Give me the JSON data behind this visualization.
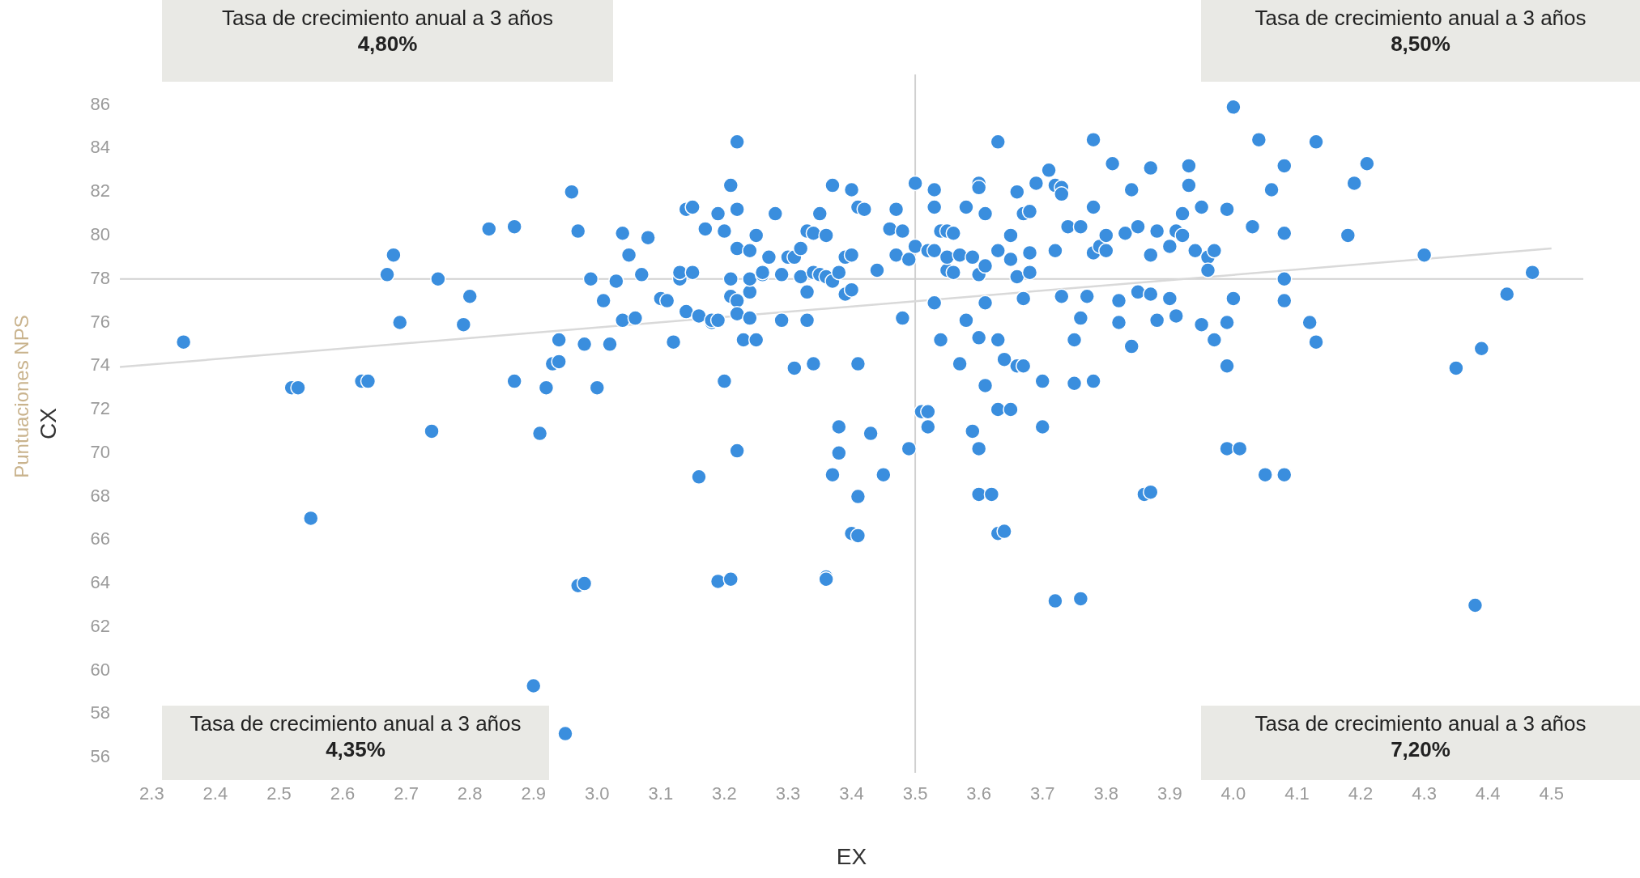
{
  "chart_data": {
    "type": "scatter",
    "xlabel": "EX",
    "ylabel": "CX",
    "annotations": [
      "Tasa de crecimiento anual a 3 años\n4,80%",
      "Tasa de crecimiento anual a 3 años\n8,50%",
      "Tasa de crecimiento anual a 3 años\n4,35%",
      "Tasa de crecimiento anual a 3 años\n7,20%",
      "Puntuaciones NPS"
    ],
    "xlim": [
      2.25,
      4.55
    ],
    "ylim": [
      55.3,
      87.4
    ],
    "xticks": [
      2.3,
      2.4,
      2.5,
      2.6,
      2.7,
      2.8,
      2.9,
      {
        "value": 3,
        "label": "3.0"
      },
      3.1,
      3.2,
      3.3,
      3.4,
      3.5,
      3.6,
      3.7,
      3.8,
      3.9,
      {
        "value": 4,
        "label": "4.0"
      },
      4.1,
      4.2,
      4.3,
      4.4,
      4.5
    ],
    "yticks": [
      56,
      58,
      60,
      62,
      64,
      66,
      68,
      70,
      72,
      74,
      76,
      78,
      80,
      82,
      84,
      86
    ],
    "ref_lines": [
      {
        "axis": "y",
        "value": 78,
        "color": "#d0d0d0"
      },
      {
        "axis": "x",
        "value": 3.5,
        "color": "#d0d0d0"
      }
    ],
    "series": [
      {
        "color": "#3a8ede",
        "marker": "circle",
        "x": [
          2.35,
          2.52,
          2.53,
          2.55,
          2.63,
          2.64,
          2.67,
          2.68,
          2.69,
          2.74,
          2.75,
          2.79,
          2.8,
          2.83,
          2.87,
          2.87,
          2.9,
          2.91,
          2.92,
          2.93,
          2.94,
          2.94,
          2.95,
          2.96,
          2.97,
          2.97,
          2.98,
          2.98,
          2.99,
          3.0,
          3.01,
          3.02,
          3.03,
          3.04,
          3.04,
          3.05,
          3.06,
          3.07,
          3.08,
          3.1,
          3.11,
          3.12,
          3.13,
          3.13,
          3.14,
          3.14,
          3.15,
          3.15,
          3.16,
          3.16,
          3.17,
          3.18,
          3.18,
          3.19,
          3.19,
          3.19,
          3.2,
          3.2,
          3.21,
          3.21,
          3.21,
          3.21,
          3.22,
          3.22,
          3.22,
          3.22,
          3.22,
          3.22,
          3.23,
          3.24,
          3.24,
          3.24,
          3.24,
          3.25,
          3.25,
          3.26,
          3.26,
          3.27,
          3.28,
          3.29,
          3.29,
          3.3,
          3.31,
          3.31,
          3.32,
          3.32,
          3.33,
          3.33,
          3.33,
          3.34,
          3.34,
          3.34,
          3.35,
          3.35,
          3.36,
          3.36,
          3.36,
          3.36,
          3.37,
          3.37,
          3.37,
          3.38,
          3.38,
          3.38,
          3.39,
          3.39,
          3.4,
          3.4,
          3.4,
          3.4,
          3.41,
          3.41,
          3.41,
          3.41,
          3.42,
          3.43,
          3.44,
          3.45,
          3.46,
          3.47,
          3.47,
          3.48,
          3.48,
          3.49,
          3.49,
          3.5,
          3.5,
          3.51,
          3.52,
          3.52,
          3.52,
          3.53,
          3.53,
          3.53,
          3.53,
          3.54,
          3.54,
          3.55,
          3.55,
          3.55,
          3.56,
          3.56,
          3.57,
          3.57,
          3.58,
          3.58,
          3.59,
          3.59,
          3.6,
          3.6,
          3.6,
          3.6,
          3.6,
          3.6,
          3.61,
          3.61,
          3.61,
          3.61,
          3.62,
          3.63,
          3.63,
          3.63,
          3.63,
          3.63,
          3.64,
          3.64,
          3.65,
          3.65,
          3.65,
          3.66,
          3.66,
          3.66,
          3.67,
          3.67,
          3.67,
          3.68,
          3.68,
          3.68,
          3.69,
          3.7,
          3.7,
          3.71,
          3.72,
          3.72,
          3.72,
          3.73,
          3.73,
          3.73,
          3.74,
          3.75,
          3.75,
          3.76,
          3.76,
          3.76,
          3.77,
          3.78,
          3.78,
          3.78,
          3.78,
          3.79,
          3.8,
          3.8,
          3.81,
          3.82,
          3.82,
          3.83,
          3.84,
          3.84,
          3.85,
          3.85,
          3.86,
          3.87,
          3.87,
          3.87,
          3.87,
          3.88,
          3.88,
          3.9,
          3.9,
          3.91,
          3.91,
          3.92,
          3.92,
          3.93,
          3.93,
          3.94,
          3.95,
          3.95,
          3.96,
          3.96,
          3.97,
          3.97,
          3.99,
          3.99,
          3.99,
          3.99,
          4.0,
          4.0,
          4.01,
          4.03,
          4.04,
          4.05,
          4.06,
          4.08,
          4.08,
          4.08,
          4.08,
          4.08,
          4.12,
          4.13,
          4.13,
          4.18,
          4.19,
          4.21,
          4.3,
          4.35,
          4.38,
          4.39,
          4.43,
          4.47
        ],
        "values": [
          75.1,
          73.0,
          73.0,
          67.0,
          73.3,
          73.3,
          78.2,
          79.1,
          76.0,
          71.0,
          78.0,
          75.9,
          77.2,
          80.3,
          80.4,
          73.3,
          59.3,
          70.9,
          73.0,
          74.1,
          75.2,
          74.2,
          57.1,
          82.0,
          80.2,
          63.9,
          64.0,
          75.0,
          78.0,
          73.0,
          77.0,
          75.0,
          77.9,
          80.1,
          76.1,
          79.1,
          76.2,
          78.2,
          79.9,
          77.1,
          77.0,
          75.1,
          78.0,
          78.3,
          81.2,
          76.5,
          81.3,
          78.3,
          76.3,
          68.9,
          80.3,
          76.0,
          76.1,
          81.0,
          76.1,
          64.1,
          80.2,
          73.3,
          82.3,
          78.0,
          77.2,
          64.2,
          84.3,
          81.2,
          79.4,
          77.0,
          76.4,
          70.1,
          75.2,
          79.3,
          77.4,
          76.2,
          78.0,
          80.0,
          75.2,
          78.2,
          78.3,
          79.0,
          81.0,
          78.2,
          76.1,
          79.0,
          79.0,
          73.9,
          79.4,
          78.1,
          80.2,
          77.4,
          76.1,
          80.1,
          78.3,
          74.1,
          81.0,
          78.2,
          80.0,
          78.1,
          64.3,
          64.2,
          82.3,
          77.9,
          69.0,
          78.3,
          71.2,
          70.0,
          79.0,
          77.3,
          82.1,
          79.1,
          77.5,
          66.3,
          81.3,
          74.1,
          68.0,
          66.2,
          81.2,
          70.9,
          78.4,
          69.0,
          80.3,
          81.2,
          79.1,
          80.2,
          76.2,
          78.9,
          70.2,
          82.4,
          79.5,
          71.9,
          79.3,
          71.9,
          71.2,
          82.1,
          81.3,
          79.3,
          76.9,
          80.2,
          75.2,
          80.2,
          78.4,
          79.0,
          78.3,
          80.1,
          79.1,
          74.1,
          81.3,
          76.1,
          79.0,
          71.0,
          82.4,
          82.2,
          78.2,
          75.3,
          70.2,
          68.1,
          81.0,
          78.6,
          76.9,
          73.1,
          68.1,
          84.3,
          79.3,
          75.2,
          72.0,
          66.3,
          74.3,
          66.4,
          80.0,
          78.9,
          72.0,
          82.0,
          78.1,
          74.0,
          81.0,
          77.1,
          74.0,
          81.1,
          79.2,
          78.3,
          82.4,
          73.3,
          71.2,
          83.0,
          82.3,
          79.3,
          63.2,
          82.2,
          81.9,
          77.2,
          80.4,
          75.2,
          73.2,
          80.4,
          76.2,
          63.3,
          77.2,
          84.4,
          81.3,
          79.2,
          73.3,
          79.5,
          80.0,
          79.3,
          83.3,
          76.0,
          77.0,
          80.1,
          82.1,
          74.9,
          80.4,
          77.4,
          68.1,
          83.1,
          79.1,
          77.3,
          68.2,
          80.2,
          76.1,
          79.5,
          77.1,
          80.2,
          76.3,
          81.0,
          80.0,
          83.2,
          82.3,
          79.3,
          81.3,
          75.9,
          79.0,
          78.4,
          79.3,
          75.2,
          81.2,
          76.0,
          74.0,
          70.2,
          85.9,
          77.1,
          70.2,
          80.4,
          84.4,
          69.0,
          82.1,
          83.2,
          80.1,
          78.0,
          77.0,
          69.0,
          76.0,
          84.3,
          75.1,
          80.0,
          82.4,
          83.3,
          79.1,
          73.9,
          63.0,
          74.8,
          77.3,
          78.3
        ]
      },
      {
        "type": "line",
        "color": "#d9d9d9",
        "x": [
          2.25,
          4.5
        ],
        "values": [
          73.95,
          79.4
        ]
      }
    ]
  }
}
